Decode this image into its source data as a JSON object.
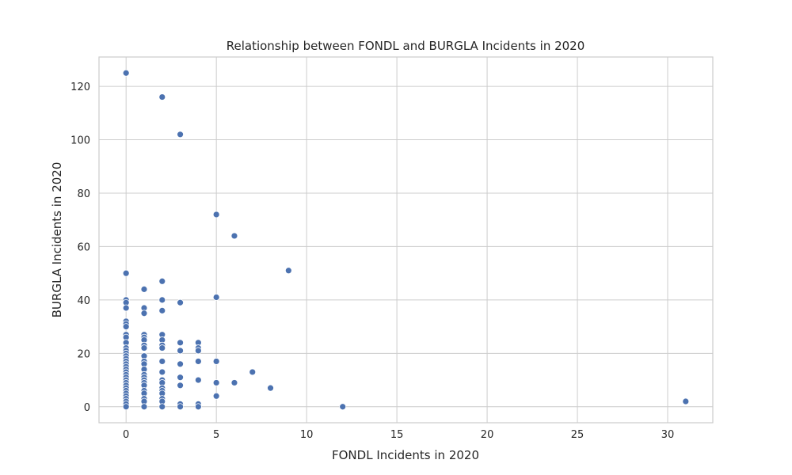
{
  "chart_data": {
    "type": "scatter",
    "title": "Relationship between FONDL and BURGLA Incidents in 2020",
    "xlabel": "FONDL Incidents in 2020",
    "ylabel": "BURGLA Incidents in 2020",
    "xlim": [
      -1.5,
      32.5
    ],
    "ylim": [
      -6,
      131
    ],
    "x_ticks": [
      0,
      5,
      10,
      15,
      20,
      25,
      30
    ],
    "y_ticks": [
      0,
      20,
      40,
      60,
      80,
      100,
      120
    ],
    "grid": true,
    "legend": "none",
    "marker_color": "#4c72b0",
    "points": [
      {
        "x": 0,
        "y": 125
      },
      {
        "x": 0,
        "y": 50
      },
      {
        "x": 0,
        "y": 40
      },
      {
        "x": 0,
        "y": 39
      },
      {
        "x": 0,
        "y": 37
      },
      {
        "x": 0,
        "y": 32
      },
      {
        "x": 0,
        "y": 31
      },
      {
        "x": 0,
        "y": 30
      },
      {
        "x": 0,
        "y": 27
      },
      {
        "x": 0,
        "y": 26
      },
      {
        "x": 0,
        "y": 24
      },
      {
        "x": 0,
        "y": 22
      },
      {
        "x": 0,
        "y": 21
      },
      {
        "x": 0,
        "y": 20
      },
      {
        "x": 0,
        "y": 19
      },
      {
        "x": 0,
        "y": 18
      },
      {
        "x": 0,
        "y": 17
      },
      {
        "x": 0,
        "y": 16
      },
      {
        "x": 0,
        "y": 15
      },
      {
        "x": 0,
        "y": 14
      },
      {
        "x": 0,
        "y": 13
      },
      {
        "x": 0,
        "y": 12
      },
      {
        "x": 0,
        "y": 11
      },
      {
        "x": 0,
        "y": 10
      },
      {
        "x": 0,
        "y": 9
      },
      {
        "x": 0,
        "y": 8
      },
      {
        "x": 0,
        "y": 7
      },
      {
        "x": 0,
        "y": 6
      },
      {
        "x": 0,
        "y": 5
      },
      {
        "x": 0,
        "y": 4
      },
      {
        "x": 0,
        "y": 3
      },
      {
        "x": 0,
        "y": 2
      },
      {
        "x": 0,
        "y": 1
      },
      {
        "x": 0,
        "y": 0
      },
      {
        "x": 1,
        "y": 44
      },
      {
        "x": 1,
        "y": 37
      },
      {
        "x": 1,
        "y": 35
      },
      {
        "x": 1,
        "y": 27
      },
      {
        "x": 1,
        "y": 26
      },
      {
        "x": 1,
        "y": 25
      },
      {
        "x": 1,
        "y": 23
      },
      {
        "x": 1,
        "y": 22
      },
      {
        "x": 1,
        "y": 19
      },
      {
        "x": 1,
        "y": 17
      },
      {
        "x": 1,
        "y": 16
      },
      {
        "x": 1,
        "y": 14
      },
      {
        "x": 1,
        "y": 12
      },
      {
        "x": 1,
        "y": 11
      },
      {
        "x": 1,
        "y": 10
      },
      {
        "x": 1,
        "y": 9
      },
      {
        "x": 1,
        "y": 8
      },
      {
        "x": 1,
        "y": 6
      },
      {
        "x": 1,
        "y": 5
      },
      {
        "x": 1,
        "y": 3
      },
      {
        "x": 1,
        "y": 2
      },
      {
        "x": 1,
        "y": 0
      },
      {
        "x": 2,
        "y": 116
      },
      {
        "x": 2,
        "y": 47
      },
      {
        "x": 2,
        "y": 40
      },
      {
        "x": 2,
        "y": 36
      },
      {
        "x": 2,
        "y": 27
      },
      {
        "x": 2,
        "y": 25
      },
      {
        "x": 2,
        "y": 23
      },
      {
        "x": 2,
        "y": 22
      },
      {
        "x": 2,
        "y": 17
      },
      {
        "x": 2,
        "y": 13
      },
      {
        "x": 2,
        "y": 10
      },
      {
        "x": 2,
        "y": 9
      },
      {
        "x": 2,
        "y": 7
      },
      {
        "x": 2,
        "y": 6
      },
      {
        "x": 2,
        "y": 5
      },
      {
        "x": 2,
        "y": 3
      },
      {
        "x": 2,
        "y": 2
      },
      {
        "x": 2,
        "y": 0
      },
      {
        "x": 3,
        "y": 102
      },
      {
        "x": 3,
        "y": 39
      },
      {
        "x": 3,
        "y": 24
      },
      {
        "x": 3,
        "y": 21
      },
      {
        "x": 3,
        "y": 16
      },
      {
        "x": 3,
        "y": 11
      },
      {
        "x": 3,
        "y": 8
      },
      {
        "x": 3,
        "y": 1
      },
      {
        "x": 3,
        "y": 0
      },
      {
        "x": 4,
        "y": 24
      },
      {
        "x": 4,
        "y": 22
      },
      {
        "x": 4,
        "y": 21
      },
      {
        "x": 4,
        "y": 17
      },
      {
        "x": 4,
        "y": 10
      },
      {
        "x": 4,
        "y": 1
      },
      {
        "x": 4,
        "y": 0
      },
      {
        "x": 5,
        "y": 72
      },
      {
        "x": 5,
        "y": 41
      },
      {
        "x": 5,
        "y": 17
      },
      {
        "x": 5,
        "y": 9
      },
      {
        "x": 5,
        "y": 4
      },
      {
        "x": 6,
        "y": 64
      },
      {
        "x": 6,
        "y": 9
      },
      {
        "x": 7,
        "y": 13
      },
      {
        "x": 8,
        "y": 7
      },
      {
        "x": 9,
        "y": 51
      },
      {
        "x": 12,
        "y": 0
      },
      {
        "x": 31,
        "y": 2
      }
    ]
  }
}
